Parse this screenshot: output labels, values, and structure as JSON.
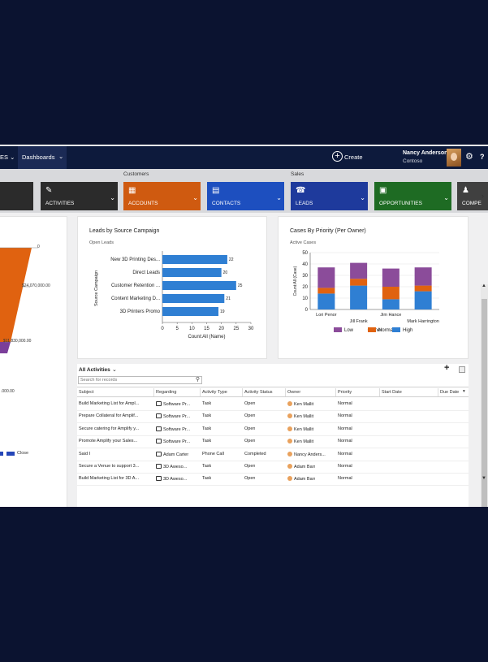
{
  "topbar": {
    "nav_tail": "ES ⌄",
    "dashboards": "Dashboards",
    "dashboards_chevron": "⌄",
    "create": "Create",
    "user_name": "Nancy Anderson",
    "user_org": "Contoso",
    "settings_icon": "gear-icon",
    "help": "?"
  },
  "ribbon": {
    "group_customers": "Customers",
    "group_sales": "Sales",
    "tiles": [
      {
        "label": "ACTIVITIES",
        "icon": "activities-icon",
        "color": "#2b2b2b"
      },
      {
        "label": "ACCOUNTS",
        "icon": "accounts-icon",
        "color": "#cf5a10"
      },
      {
        "label": "CONTACTS",
        "icon": "contacts-icon",
        "color": "#1d4fbf"
      },
      {
        "label": "LEADS",
        "icon": "leads-icon",
        "color": "#1e3a9c"
      },
      {
        "label": "OPPORTUNITIES",
        "icon": "opportunities-icon",
        "color": "#1e6b23"
      },
      {
        "label": "COMPE",
        "icon": "competitors-icon",
        "color": "#404040"
      }
    ],
    "chevron": "⌄",
    "scroll_arrow": "›"
  },
  "funnel": {
    "labels": [
      "0",
      "$24,070,000.00",
      "$11,830,000.00",
      ".000.00"
    ],
    "legend_label": "Close",
    "colors": {
      "top": "#e06210",
      "bottom": "#7b3f9a",
      "legend_blue": "#2546b8",
      "legend_prev": "#2546b8"
    }
  },
  "leads_card": {
    "title": "Leads by Source Campaign",
    "subtitle": "Open Leads"
  },
  "cases_card": {
    "title": "Cases By Priority (Per Owner)",
    "subtitle": "Active Cases"
  },
  "chart_data": [
    {
      "type": "bar",
      "orientation": "horizontal",
      "categories": [
        "New 3D Printing Des...",
        "Direct Leads",
        "Customer Retention ...",
        "Content Marketing D...",
        "3D Printers Promo"
      ],
      "values": [
        22,
        20,
        25,
        21,
        19
      ],
      "ylabel": "Source Campaign",
      "xlabel": "Count:All (Name)",
      "xlim": [
        0,
        30
      ],
      "xticks": [
        0,
        5,
        10,
        15,
        20,
        25,
        30
      ],
      "color": "#2f7fd3"
    },
    {
      "type": "bar",
      "stacked": true,
      "categories": [
        "Lori Penor",
        "Jill Frank",
        "Jim Hance",
        "Mark Harrington"
      ],
      "series": [
        {
          "name": "High",
          "values": [
            14,
            21,
            9,
            16
          ],
          "color": "#2f7fd3"
        },
        {
          "name": "Normal",
          "values": [
            5,
            6,
            11,
            5
          ],
          "color": "#e06210"
        },
        {
          "name": "Low",
          "values": [
            18,
            14,
            16,
            16
          ],
          "color": "#8b4c9a"
        }
      ],
      "legend_order": [
        "Low",
        "Normal",
        "High"
      ],
      "ylabel": "Count:All (Case)",
      "xlabel": "Owner",
      "ylim": [
        0,
        50
      ],
      "yticks": [
        0,
        10,
        20,
        30,
        40,
        50
      ],
      "legend_position": "bottom"
    }
  ],
  "activities": {
    "view_name": "All Activities",
    "view_chevron": "⌄",
    "search_placeholder": "Search for records",
    "add_icon": "+",
    "columns": [
      "Subject",
      "Regarding",
      "Activity Type",
      "Activity Status",
      "Owner",
      "Priority",
      "Start Date",
      "Due Date"
    ],
    "rows": [
      {
        "subject": "Build Marketing List for Ampl...",
        "regarding": "Software Pr...",
        "type": "Task",
        "status": "Open",
        "owner": "Ken Mallit",
        "priority": "Normal"
      },
      {
        "subject": "Prepare Collateral for Amplif...",
        "regarding": "Software Pr...",
        "type": "Task",
        "status": "Open",
        "owner": "Ken Mallit",
        "priority": "Normal"
      },
      {
        "subject": "Secure catering for Amplify y...",
        "regarding": "Software Pr...",
        "type": "Task",
        "status": "Open",
        "owner": "Ken Mallit",
        "priority": "Normal"
      },
      {
        "subject": "Promote Amplify your Sales...",
        "regarding": "Software Pr...",
        "type": "Task",
        "status": "Open",
        "owner": "Ken Mallit",
        "priority": "Normal"
      },
      {
        "subject": "Said I",
        "regarding": "Adam Carter",
        "type": "Phone Call",
        "status": "Completed",
        "owner": "Nancy Anders...",
        "priority": "Normal"
      },
      {
        "subject": "Secure a Venue to support 3...",
        "regarding": "3D Aweso...",
        "type": "Task",
        "status": "Open",
        "owner": "Adam Barr",
        "priority": "Normal"
      },
      {
        "subject": "Build Marketing List for 3D A...",
        "regarding": "3D Aweso...",
        "type": "Task",
        "status": "Open",
        "owner": "Adam Barr",
        "priority": "Normal"
      }
    ]
  }
}
